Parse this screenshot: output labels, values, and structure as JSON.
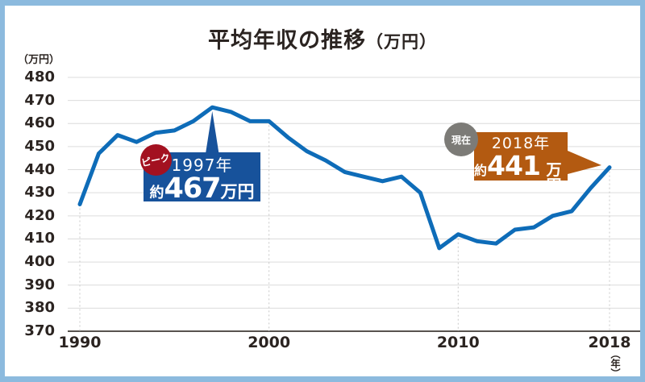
{
  "title": {
    "main": "平均年収の推移",
    "unit": "（万円）"
  },
  "axes": {
    "y_unit_label": "（万円）",
    "x_unit_label": "（年）"
  },
  "chart_data": {
    "type": "line",
    "title": "平均年収の推移（万円）",
    "x": [
      1990,
      1991,
      1992,
      1993,
      1994,
      1995,
      1996,
      1997,
      1998,
      1999,
      2000,
      2001,
      2002,
      2003,
      2004,
      2005,
      2006,
      2007,
      2008,
      2009,
      2010,
      2011,
      2012,
      2013,
      2014,
      2015,
      2016,
      2017,
      2018
    ],
    "series": [
      {
        "name": "平均年収",
        "values": [
          425,
          447,
          455,
          452,
          456,
          457,
          461,
          467,
          465,
          461,
          461,
          454,
          448,
          444,
          439,
          437,
          435,
          437,
          430,
          406,
          412,
          409,
          408,
          414,
          415,
          420,
          422,
          432,
          441
        ]
      }
    ],
    "x_ticks": [
      1990,
      2000,
      2010,
      2018
    ],
    "y_ticks": [
      480,
      470,
      460,
      450,
      440,
      430,
      420,
      410,
      400,
      390,
      380,
      370
    ],
    "ylim": [
      370,
      480
    ],
    "xlabel": "（年）",
    "ylabel": "（万円）",
    "grid": "horizontal solid + dotted vertical guides at labeled years",
    "legend": "none"
  },
  "annotations": {
    "peak": {
      "badge": "ピーク",
      "year_label": "1997年",
      "approx": "約",
      "value": "467",
      "unit": "万円",
      "anchor_year": 1997
    },
    "current": {
      "badge": "現在",
      "year_label": "2018年",
      "approx": "約",
      "value": "441",
      "unit": "万円",
      "anchor_year": 2018
    }
  },
  "colors": {
    "frame_border": "#8cbade",
    "line": "#0e6cb8",
    "grid": "#dcdcdc",
    "axis": "#58534f",
    "peak_box": "#17529b",
    "peak_badge": "#a31120",
    "current_box": "#b35a11",
    "current_badge": "#7c7b77",
    "text": "#2b2421"
  }
}
